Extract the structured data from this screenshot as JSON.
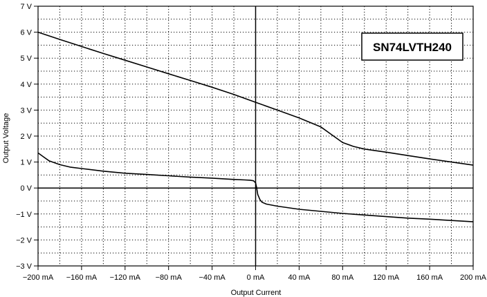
{
  "chart_data": {
    "type": "line",
    "title": "SN74LVTH240",
    "xlabel": "Output Current",
    "ylabel": "Output Voltage",
    "xlim": [
      -200,
      200
    ],
    "ylim": [
      -3,
      7
    ],
    "x_ticks": [
      "−200 mA",
      "−160 mA",
      "−120 mA",
      "−80 mA",
      "−40 mA",
      "0 mA",
      "40 mA",
      "80 mA",
      "120 mA",
      "160 mA",
      "200 mA"
    ],
    "x_tick_values": [
      -200,
      -160,
      -120,
      -80,
      -40,
      0,
      40,
      80,
      120,
      160,
      200
    ],
    "y_ticks": [
      "−3 V",
      "−2 V",
      "−1 V",
      "0 V",
      "1 V",
      "2 V",
      "3 V",
      "4 V",
      "5 V",
      "6 V",
      "7 V"
    ],
    "y_tick_values": [
      -3,
      -2,
      -1,
      0,
      1,
      2,
      3,
      4,
      5,
      6,
      7
    ],
    "grid": true,
    "series": [
      {
        "values_x": [
          -200,
          -180,
          -160,
          -140,
          -120,
          -100,
          -80,
          -60,
          -40,
          -20,
          0,
          20,
          40,
          60,
          70,
          80,
          90,
          100,
          120,
          140,
          160,
          180,
          200
        ],
        "values_y": [
          6.0,
          5.72,
          5.45,
          5.18,
          4.92,
          4.66,
          4.4,
          4.14,
          3.88,
          3.6,
          3.3,
          3.0,
          2.7,
          2.35,
          2.05,
          1.75,
          1.6,
          1.5,
          1.38,
          1.25,
          1.12,
          1.0,
          0.88
        ]
      },
      {
        "values_x": [
          -200,
          -195,
          -190,
          -180,
          -170,
          -160,
          -140,
          -120,
          -100,
          -80,
          -60,
          -40,
          -20,
          -10,
          -5,
          -2,
          0,
          1,
          2,
          4,
          6,
          10,
          20,
          40,
          60,
          80,
          100,
          120,
          140,
          160,
          180,
          200
        ],
        "values_y": [
          1.35,
          1.2,
          1.05,
          0.9,
          0.8,
          0.75,
          0.65,
          0.57,
          0.52,
          0.47,
          0.42,
          0.38,
          0.33,
          0.31,
          0.3,
          0.28,
          0.2,
          0.0,
          -0.25,
          -0.45,
          -0.55,
          -0.62,
          -0.7,
          -0.82,
          -0.9,
          -0.98,
          -1.04,
          -1.1,
          -1.16,
          -1.2,
          -1.25,
          -1.3
        ]
      }
    ]
  }
}
